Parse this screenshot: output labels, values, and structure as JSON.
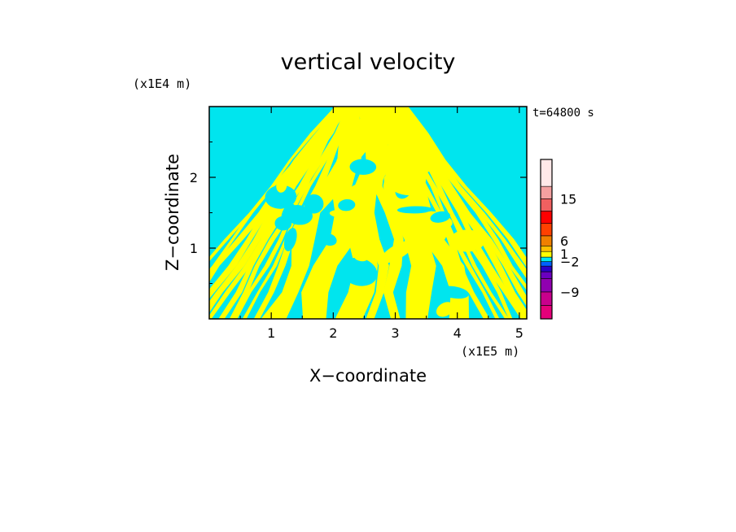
{
  "chart_data": {
    "type": "heatmap",
    "title": "vertical velocity",
    "xlabel": "X−coordinate",
    "ylabel": "Z−coordinate",
    "x_unit": "(x1E5 m)",
    "y_unit": "(x1E4 m)",
    "time_label": "t=64800 s",
    "xlim": [
      0,
      5.12
    ],
    "ylim": [
      0,
      3.0
    ],
    "x_ticks": [
      1,
      2,
      3,
      4,
      5
    ],
    "y_ticks": [
      1,
      2
    ],
    "x_tick_labels": [
      "1",
      "2",
      "3",
      "4",
      "5"
    ],
    "y_tick_labels": [
      "1",
      "2"
    ],
    "field_colors": {
      "positive": "#ffff00",
      "negative": "#00e5ee"
    },
    "colorbar": {
      "levels": [
        {
          "color": "#e5007a"
        },
        {
          "color": "#c8008c"
        },
        {
          "color": "#9000b0"
        },
        {
          "color": "#6a00c0"
        },
        {
          "color": "#2a00c8"
        },
        {
          "color": "#0060ff"
        },
        {
          "color": "#00e5ee"
        },
        {
          "color": "#ffff00"
        },
        {
          "color": "#ffc000"
        },
        {
          "color": "#f08000"
        },
        {
          "color": "#ff4000"
        },
        {
          "color": "#ff0000"
        },
        {
          "color": "#f06060"
        },
        {
          "color": "#f4a0a0"
        },
        {
          "color": "#ffe8e8"
        }
      ],
      "labels": [
        {
          "text": "15",
          "level": 13
        },
        {
          "text": "6",
          "level": 9.5
        },
        {
          "text": "1",
          "level": 7.6
        },
        {
          "text": "−2",
          "level": 6.0
        },
        {
          "text": "−9",
          "level": 2.0
        }
      ]
    }
  }
}
